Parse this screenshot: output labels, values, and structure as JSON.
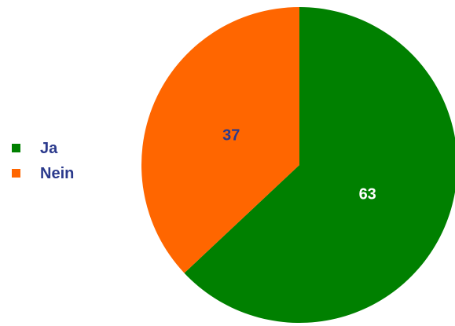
{
  "chart_data": {
    "type": "pie",
    "categories": [
      "Ja",
      "Nein"
    ],
    "values": [
      63,
      37
    ],
    "colors": [
      "#008000",
      "#ff6600"
    ],
    "label_colors": [
      "#ffffff",
      "#2b3a8c"
    ],
    "legend_text_color": "#2b3a8c",
    "start_angle_deg": 0,
    "direction": "clockwise",
    "legend_position": "left"
  }
}
